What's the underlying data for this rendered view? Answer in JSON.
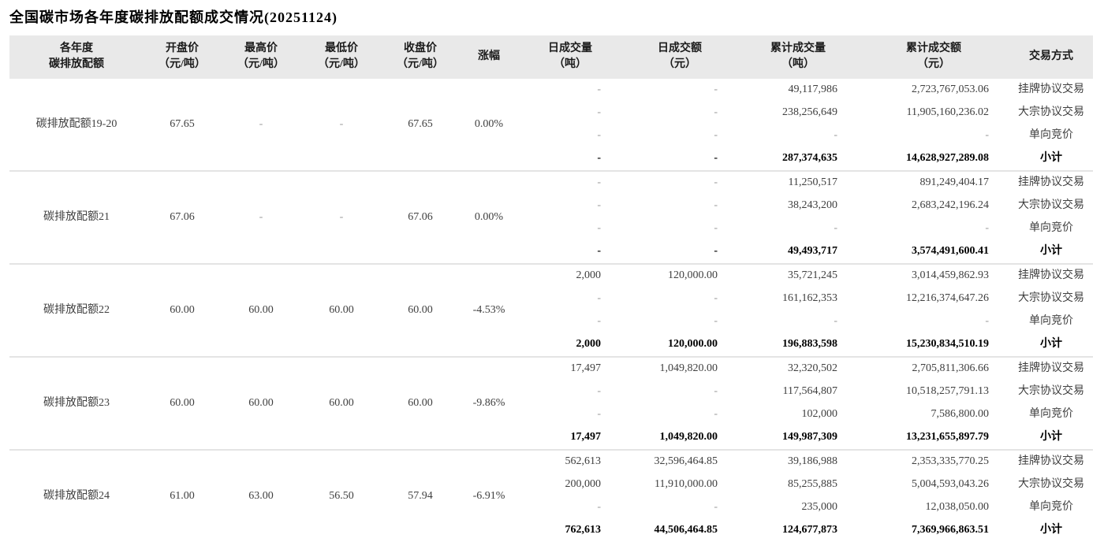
{
  "title": "全国碳市场各年度碳排放配额成交情况(20251124)",
  "table": {
    "headers": [
      {
        "line1": "各年度",
        "line2": "碳排放配额"
      },
      {
        "line1": "开盘价",
        "line2": "（元/吨）"
      },
      {
        "line1": "最高价",
        "line2": "（元/吨）"
      },
      {
        "line1": "最低价",
        "line2": "（元/吨）"
      },
      {
        "line1": "收盘价",
        "line2": "（元/吨）"
      },
      {
        "line1": "涨幅",
        "line2": ""
      },
      {
        "line1": "日成交量",
        "line2": "（吨）"
      },
      {
        "line1": "日成交额",
        "line2": "（元）"
      },
      {
        "line1": "累计成交量",
        "line2": "（吨）"
      },
      {
        "line1": "累计成交额",
        "line2": "（元）"
      },
      {
        "line1": "交易方式",
        "line2": ""
      }
    ],
    "blocks": [
      {
        "quota": "碳排放配额19-20",
        "open": "67.65",
        "high": "-",
        "low": "-",
        "close": "67.65",
        "change": "0.00%",
        "rows": [
          {
            "daily_volume": "-",
            "daily_amount": "-",
            "cum_volume": "49,117,986",
            "cum_amount": "2,723,767,053.06",
            "method": "挂牌协议交易",
            "subtotal": false
          },
          {
            "daily_volume": "-",
            "daily_amount": "-",
            "cum_volume": "238,256,649",
            "cum_amount": "11,905,160,236.02",
            "method": "大宗协议交易",
            "subtotal": false
          },
          {
            "daily_volume": "-",
            "daily_amount": "-",
            "cum_volume": "-",
            "cum_amount": "-",
            "method": "单向竞价",
            "subtotal": false
          },
          {
            "daily_volume": "-",
            "daily_amount": "-",
            "cum_volume": "287,374,635",
            "cum_amount": "14,628,927,289.08",
            "method": "小计",
            "subtotal": true
          }
        ]
      },
      {
        "quota": "碳排放配额21",
        "open": "67.06",
        "high": "-",
        "low": "-",
        "close": "67.06",
        "change": "0.00%",
        "rows": [
          {
            "daily_volume": "-",
            "daily_amount": "-",
            "cum_volume": "11,250,517",
            "cum_amount": "891,249,404.17",
            "method": "挂牌协议交易",
            "subtotal": false
          },
          {
            "daily_volume": "-",
            "daily_amount": "-",
            "cum_volume": "38,243,200",
            "cum_amount": "2,683,242,196.24",
            "method": "大宗协议交易",
            "subtotal": false
          },
          {
            "daily_volume": "-",
            "daily_amount": "-",
            "cum_volume": "-",
            "cum_amount": "-",
            "method": "单向竞价",
            "subtotal": false
          },
          {
            "daily_volume": "-",
            "daily_amount": "-",
            "cum_volume": "49,493,717",
            "cum_amount": "3,574,491,600.41",
            "method": "小计",
            "subtotal": true
          }
        ]
      },
      {
        "quota": "碳排放配额22",
        "open": "60.00",
        "high": "60.00",
        "low": "60.00",
        "close": "60.00",
        "change": "-4.53%",
        "rows": [
          {
            "daily_volume": "2,000",
            "daily_amount": "120,000.00",
            "cum_volume": "35,721,245",
            "cum_amount": "3,014,459,862.93",
            "method": "挂牌协议交易",
            "subtotal": false
          },
          {
            "daily_volume": "-",
            "daily_amount": "-",
            "cum_volume": "161,162,353",
            "cum_amount": "12,216,374,647.26",
            "method": "大宗协议交易",
            "subtotal": false
          },
          {
            "daily_volume": "-",
            "daily_amount": "-",
            "cum_volume": "-",
            "cum_amount": "-",
            "method": "单向竞价",
            "subtotal": false
          },
          {
            "daily_volume": "2,000",
            "daily_amount": "120,000.00",
            "cum_volume": "196,883,598",
            "cum_amount": "15,230,834,510.19",
            "method": "小计",
            "subtotal": true
          }
        ]
      },
      {
        "quota": "碳排放配额23",
        "open": "60.00",
        "high": "60.00",
        "low": "60.00",
        "close": "60.00",
        "change": "-9.86%",
        "rows": [
          {
            "daily_volume": "17,497",
            "daily_amount": "1,049,820.00",
            "cum_volume": "32,320,502",
            "cum_amount": "2,705,811,306.66",
            "method": "挂牌协议交易",
            "subtotal": false
          },
          {
            "daily_volume": "-",
            "daily_amount": "-",
            "cum_volume": "117,564,807",
            "cum_amount": "10,518,257,791.13",
            "method": "大宗协议交易",
            "subtotal": false
          },
          {
            "daily_volume": "-",
            "daily_amount": "-",
            "cum_volume": "102,000",
            "cum_amount": "7,586,800.00",
            "method": "单向竞价",
            "subtotal": false
          },
          {
            "daily_volume": "17,497",
            "daily_amount": "1,049,820.00",
            "cum_volume": "149,987,309",
            "cum_amount": "13,231,655,897.79",
            "method": "小计",
            "subtotal": true
          }
        ]
      },
      {
        "quota": "碳排放配额24",
        "open": "61.00",
        "high": "63.00",
        "low": "56.50",
        "close": "57.94",
        "change": "-6.91%",
        "rows": [
          {
            "daily_volume": "562,613",
            "daily_amount": "32,596,464.85",
            "cum_volume": "39,186,988",
            "cum_amount": "2,353,335,770.25",
            "method": "挂牌协议交易",
            "subtotal": false
          },
          {
            "daily_volume": "200,000",
            "daily_amount": "11,910,000.00",
            "cum_volume": "85,255,885",
            "cum_amount": "5,004,593,043.26",
            "method": "大宗协议交易",
            "subtotal": false
          },
          {
            "daily_volume": "-",
            "daily_amount": "-",
            "cum_volume": "235,000",
            "cum_amount": "12,038,050.00",
            "method": "单向竞价",
            "subtotal": false
          },
          {
            "daily_volume": "762,613",
            "daily_amount": "44,506,464.85",
            "cum_volume": "124,677,873",
            "cum_amount": "7,369,966,863.51",
            "method": "小计",
            "subtotal": true
          }
        ]
      }
    ]
  },
  "colors": {
    "header_bg": "#e9e9e9",
    "separator": "#e4e4e4",
    "text": "#3f3f3f",
    "bold_text": "#000000",
    "dash": "#999999"
  }
}
